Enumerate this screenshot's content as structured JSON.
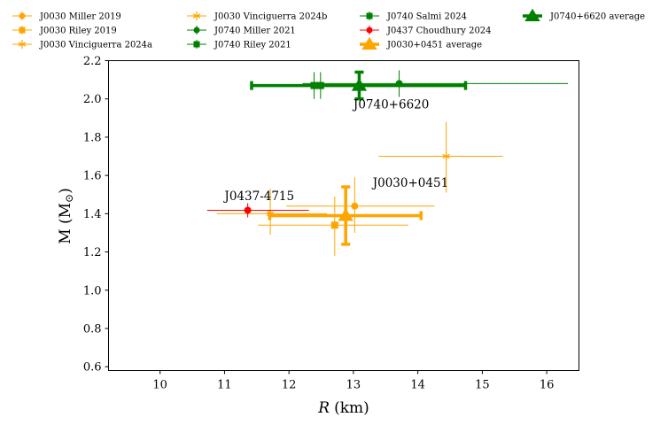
{
  "chart_data": {
    "type": "scatter",
    "title": "",
    "xlabel_var": "R",
    "xlabel_unit": "(km)",
    "ylabel_main": "M (M",
    "ylabel_sub": "⊙",
    "ylabel_close": ")",
    "xlim": [
      9.2,
      16.5
    ],
    "ylim": [
      0.58,
      2.2
    ],
    "xticks": [
      10,
      11,
      12,
      13,
      14,
      15,
      16
    ],
    "yticks": [
      0.6,
      0.8,
      1.0,
      1.2,
      1.4,
      1.6,
      1.8,
      2.0,
      2.2
    ],
    "grid": false,
    "legend_position": "top, outside plot, 4 columns",
    "colors": {
      "J0030": "#ffa500",
      "J0740": "#008000",
      "J0437": "#ff0000"
    },
    "series": [
      {
        "name": "J0030 Miller 2019",
        "color": "#ffa500",
        "marker": "circle",
        "x": 13.02,
        "y": 1.44,
        "xerr": [
          1.06,
          1.24
        ],
        "yerr": [
          0.14,
          0.15
        ]
      },
      {
        "name": "J0030 Riley 2019",
        "color": "#ffa500",
        "marker": "square",
        "x": 12.71,
        "y": 1.34,
        "xerr": [
          1.19,
          1.14
        ],
        "yerr": [
          0.16,
          0.15
        ]
      },
      {
        "name": "J0030 Vinciguerra 2024a",
        "color": "#ffa500",
        "marker": "star",
        "x": 14.44,
        "y": 1.7,
        "xerr": [
          1.05,
          0.88
        ],
        "yerr": [
          0.19,
          0.18
        ]
      },
      {
        "name": "J0030 Vinciguerra 2024b",
        "color": "#ffa500",
        "marker": "star",
        "x": 11.71,
        "y": 1.4,
        "xerr": [
          0.83,
          0.88
        ],
        "yerr": [
          0.11,
          0.13
        ]
      },
      {
        "name": "J0740 Miller 2021",
        "color": "#008000",
        "marker": "circle",
        "x": 13.71,
        "y": 2.08,
        "xerr": [
          1.5,
          2.62
        ],
        "yerr": [
          0.07,
          0.07
        ]
      },
      {
        "name": "J0740 Riley 2021",
        "color": "#008000",
        "marker": "square",
        "x": 12.39,
        "y": 2.07,
        "xerr": [
          0.98,
          1.3
        ],
        "yerr": [
          0.07,
          0.07
        ]
      },
      {
        "name": "J0740 Salmi 2024",
        "color": "#008000",
        "marker": "square",
        "x": 12.49,
        "y": 2.07,
        "xerr": [
          0.88,
          1.28
        ],
        "yerr": [
          0.07,
          0.07
        ]
      },
      {
        "name": "J0437 Choudhury 2024",
        "color": "#ff0000",
        "marker": "circle",
        "x": 11.36,
        "y": 1.418,
        "xerr": [
          0.63,
          0.95
        ],
        "yerr": [
          0.037,
          0.037
        ]
      },
      {
        "name": "J0030+0451 average",
        "color": "#ffa500",
        "marker": "triangle",
        "x": 12.88,
        "y": 1.39,
        "xerr": [
          1.18,
          1.17
        ],
        "yerr": [
          0.15,
          0.15
        ],
        "thick": true
      },
      {
        "name": "J0740+6620 average",
        "color": "#008000",
        "marker": "triangle",
        "x": 13.09,
        "y": 2.07,
        "xerr": [
          1.67,
          1.65
        ],
        "yerr": [
          0.07,
          0.07
        ],
        "thick": true
      }
    ],
    "annotations": [
      {
        "text": "J0740+6620",
        "x": 13.0,
        "y": 1.95
      },
      {
        "text": "J0030+0451",
        "x": 13.3,
        "y": 1.54
      },
      {
        "text": "J0437-4715",
        "x": 11.0,
        "y": 1.47
      }
    ]
  }
}
